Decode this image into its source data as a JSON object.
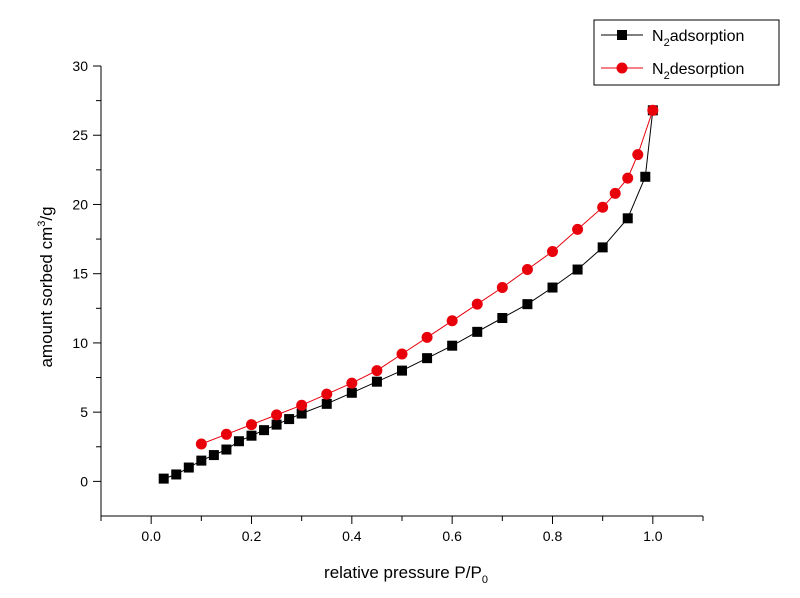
{
  "chart_data": {
    "type": "line",
    "xlabel": "relative pressure P/P0",
    "ylabel": "amount sorbed cm3/g",
    "xlim": [
      -0.1,
      1.1
    ],
    "ylim": [
      -2.5,
      30
    ],
    "xticks": [
      0.0,
      0.2,
      0.4,
      0.6,
      0.8,
      1.0
    ],
    "xtick_labels": [
      "0.0",
      "0.2",
      "0.4",
      "0.6",
      "0.8",
      "1.0"
    ],
    "yticks": [
      0,
      5,
      10,
      15,
      20,
      25,
      30
    ],
    "ytick_labels": [
      "0",
      "5",
      "10",
      "15",
      "20",
      "25",
      "30"
    ],
    "grid": false,
    "legend_position": "top-right",
    "series": [
      {
        "name": "N2adsorption",
        "color": "#000000",
        "marker": "square",
        "x": [
          0.025,
          0.05,
          0.075,
          0.1,
          0.125,
          0.15,
          0.175,
          0.2,
          0.225,
          0.25,
          0.275,
          0.3,
          0.35,
          0.4,
          0.45,
          0.5,
          0.55,
          0.6,
          0.65,
          0.7,
          0.75,
          0.8,
          0.85,
          0.9,
          0.95,
          0.985,
          1.0
        ],
        "y": [
          0.2,
          0.5,
          1.0,
          1.5,
          1.9,
          2.3,
          2.9,
          3.3,
          3.7,
          4.1,
          4.5,
          4.9,
          5.6,
          6.4,
          7.2,
          8.0,
          8.9,
          9.8,
          10.8,
          11.8,
          12.8,
          14.0,
          15.3,
          16.9,
          19.0,
          22.0,
          26.8
        ]
      },
      {
        "name": "N2desorption",
        "color": "#e8000b",
        "marker": "circle",
        "x": [
          1.0,
          0.97,
          0.95,
          0.925,
          0.9,
          0.85,
          0.8,
          0.75,
          0.7,
          0.65,
          0.6,
          0.55,
          0.5,
          0.45,
          0.4,
          0.35,
          0.3,
          0.25,
          0.2,
          0.15,
          0.1
        ],
        "y": [
          26.8,
          23.6,
          21.9,
          20.8,
          19.8,
          18.2,
          16.6,
          15.3,
          14.0,
          12.8,
          11.6,
          10.4,
          9.2,
          8.0,
          7.1,
          6.3,
          5.5,
          4.8,
          4.1,
          3.4,
          2.7
        ]
      }
    ]
  }
}
